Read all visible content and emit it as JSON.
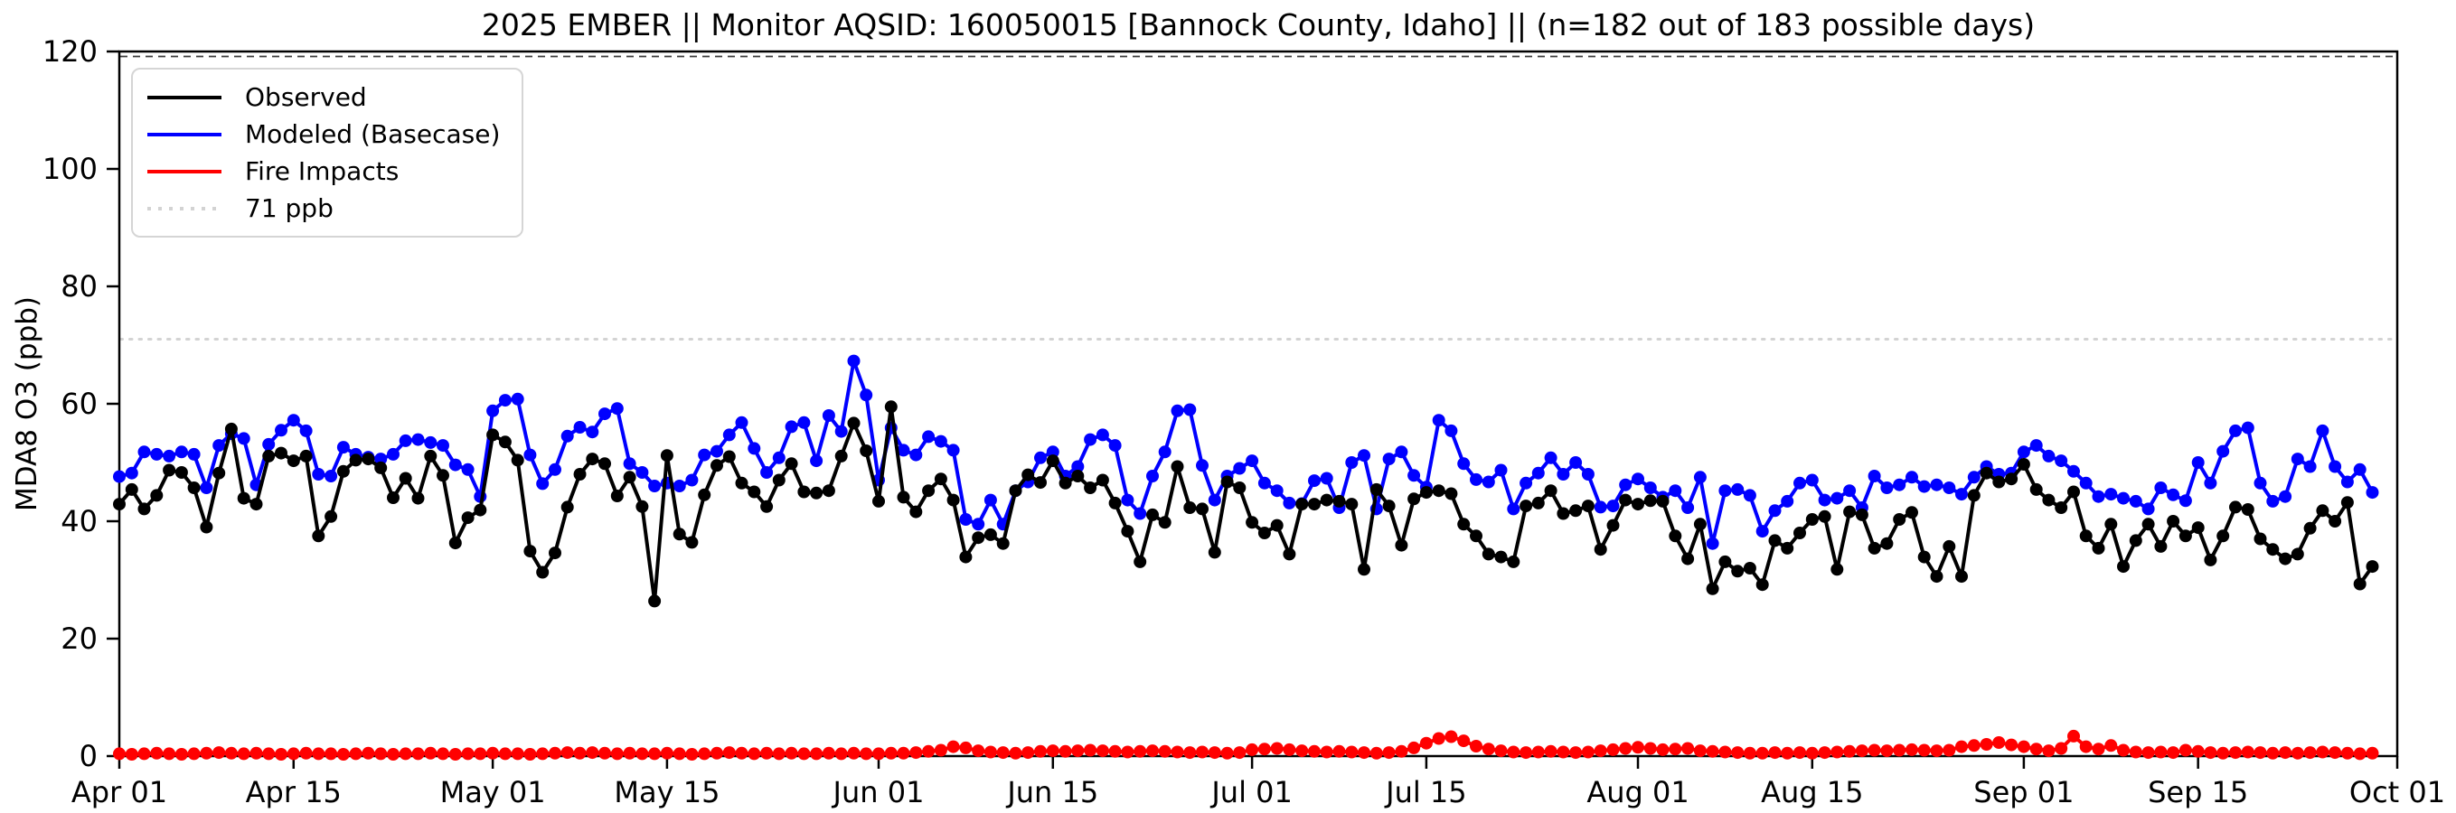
{
  "figure": {
    "title": "2025 EMBER || Monitor AQSID: 160050015 [Bannock County, Idaho] || (n=182 out of 183 possible days)",
    "background": "#ffffff"
  },
  "axes": {
    "ylabel": "MDA8 O3 (ppb)",
    "ylim": [
      0,
      120
    ],
    "yticks": [
      0,
      20,
      40,
      60,
      80,
      100,
      120
    ],
    "x_total_days": 183,
    "xticks": [
      {
        "label": "Apr 01",
        "day": 0
      },
      {
        "label": "Apr 15",
        "day": 14
      },
      {
        "label": "May 01",
        "day": 30
      },
      {
        "label": "May 15",
        "day": 44
      },
      {
        "label": "Jun 01",
        "day": 61
      },
      {
        "label": "Jun 15",
        "day": 75
      },
      {
        "label": "Jul 01",
        "day": 91
      },
      {
        "label": "Jul 15",
        "day": 105
      },
      {
        "label": "Aug 01",
        "day": 122
      },
      {
        "label": "Aug 15",
        "day": 136
      },
      {
        "label": "Sep 01",
        "day": 153
      },
      {
        "label": "Sep 15",
        "day": 167
      },
      {
        "label": "Oct 01",
        "day": 183
      }
    ]
  },
  "legend": {
    "items": [
      {
        "label": "Observed",
        "color": "#000000",
        "style": "solid"
      },
      {
        "label": "Modeled (Basecase)",
        "color": "#0000ff",
        "style": "solid"
      },
      {
        "label": "Fire Impacts",
        "color": "#ff0000",
        "style": "solid"
      },
      {
        "label": "71 ppb",
        "color": "#d3d3d3",
        "style": "dotted"
      }
    ]
  },
  "chart_data": {
    "type": "line",
    "title": "2025 EMBER || Monitor AQSID: 160050015 [Bannock County, Idaho] || (n=182 out of 183 possible days)",
    "xlabel": "",
    "ylabel": "MDA8 O3 (ppb)",
    "x_unit": "days since Apr 01 2025 (daily values, Apr 01 - Sep 29)",
    "x_range_days": [
      0,
      183
    ],
    "ylim": [
      0,
      120
    ],
    "grid": false,
    "legend_position": "upper left",
    "threshold_ppb": 71,
    "threshold_color": "#d3d3d3",
    "series": [
      {
        "name": "Fire Impacts",
        "color": "#ff0000",
        "marker": "circle",
        "values": [
          0.4,
          0.3,
          0.4,
          0.5,
          0.4,
          0.3,
          0.4,
          0.5,
          0.6,
          0.5,
          0.4,
          0.5,
          0.4,
          0.3,
          0.4,
          0.5,
          0.4,
          0.4,
          0.3,
          0.4,
          0.5,
          0.4,
          0.3,
          0.4,
          0.4,
          0.5,
          0.4,
          0.3,
          0.4,
          0.4,
          0.5,
          0.4,
          0.4,
          0.3,
          0.4,
          0.5,
          0.6,
          0.5,
          0.6,
          0.5,
          0.4,
          0.5,
          0.4,
          0.4,
          0.5,
          0.4,
          0.3,
          0.4,
          0.5,
          0.6,
          0.5,
          0.4,
          0.5,
          0.4,
          0.5,
          0.4,
          0.4,
          0.5,
          0.4,
          0.5,
          0.4,
          0.4,
          0.5,
          0.5,
          0.6,
          0.8,
          1.0,
          1.6,
          1.4,
          0.9,
          0.7,
          0.6,
          0.5,
          0.6,
          0.8,
          0.9,
          0.8,
          0.9,
          1.0,
          0.9,
          0.8,
          0.7,
          0.8,
          0.9,
          0.8,
          0.7,
          0.6,
          0.7,
          0.6,
          0.5,
          0.6,
          1.1,
          1.2,
          1.3,
          1.1,
          0.9,
          0.8,
          0.7,
          0.8,
          0.7,
          0.6,
          0.5,
          0.6,
          0.8,
          1.4,
          2.2,
          3.0,
          3.3,
          2.6,
          1.7,
          1.2,
          0.9,
          0.7,
          0.6,
          0.7,
          0.8,
          0.7,
          0.6,
          0.7,
          0.9,
          1.1,
          1.3,
          1.5,
          1.3,
          1.1,
          1.2,
          1.3,
          0.9,
          0.8,
          0.7,
          0.6,
          0.5,
          0.5,
          0.6,
          0.5,
          0.6,
          0.5,
          0.6,
          0.7,
          0.8,
          0.9,
          1.0,
          0.9,
          1.0,
          1.1,
          1.0,
          0.9,
          1.0,
          1.6,
          1.8,
          2.0,
          2.3,
          1.9,
          1.6,
          1.2,
          0.9,
          1.3,
          3.4,
          1.6,
          1.2,
          1.8,
          1.0,
          0.7,
          0.6,
          0.7,
          0.6,
          1.0,
          0.8,
          0.6,
          0.5,
          0.6,
          0.7,
          0.6,
          0.5,
          0.6,
          0.5,
          0.6,
          0.7,
          0.6,
          0.5,
          0.4,
          0.5
        ]
      },
      {
        "name": "Modeled (Basecase)",
        "color": "#0000ff",
        "marker": "circle",
        "values": [
          47.6,
          48.2,
          51.8,
          51.4,
          51.1,
          51.8,
          51.4,
          45.7,
          52.9,
          54.9,
          54.1,
          46.2,
          53.1,
          55.5,
          57.2,
          55.4,
          48.0,
          47.7,
          52.6,
          51.4,
          50.9,
          50.6,
          51.4,
          53.7,
          53.9,
          53.4,
          52.9,
          49.6,
          48.8,
          44.2,
          58.8,
          60.6,
          60.8,
          51.3,
          46.4,
          48.8,
          54.5,
          56.0,
          55.2,
          58.3,
          59.2,
          49.8,
          48.3,
          46.0,
          46.5,
          46.0,
          47.0,
          51.3,
          51.9,
          54.7,
          56.8,
          52.4,
          48.3,
          50.8,
          56.1,
          56.8,
          50.3,
          58.0,
          55.3,
          67.3,
          61.5,
          47.0,
          55.9,
          52.1,
          51.3,
          54.4,
          53.6,
          52.1,
          40.3,
          39.5,
          43.6,
          39.5,
          45.2,
          46.7,
          50.8,
          51.8,
          47.7,
          49.3,
          53.9,
          54.7,
          52.9,
          43.6,
          41.3,
          47.7,
          51.8,
          58.8,
          59.0,
          49.5,
          43.6,
          47.7,
          49.0,
          50.3,
          46.5,
          45.2,
          43.1,
          43.0,
          46.9,
          47.3,
          42.3,
          50.0,
          51.2,
          42.1,
          50.6,
          51.8,
          47.8,
          45.8,
          57.2,
          55.4,
          49.8,
          47.1,
          46.7,
          48.7,
          42.1,
          46.5,
          48.2,
          50.8,
          48.0,
          50.0,
          48.0,
          42.4,
          42.6,
          46.2,
          47.2,
          45.7,
          44.1,
          45.2,
          42.3,
          47.5,
          36.2,
          45.2,
          45.4,
          44.4,
          38.3,
          41.8,
          43.4,
          46.5,
          47.0,
          43.6,
          43.9,
          45.2,
          42.3,
          47.7,
          45.7,
          46.2,
          47.5,
          45.9,
          46.2,
          45.7,
          44.6,
          47.5,
          49.3,
          48.0,
          48.2,
          51.8,
          52.9,
          51.1,
          50.3,
          48.5,
          46.5,
          44.2,
          44.6,
          43.9,
          43.4,
          42.1,
          45.7,
          44.5,
          43.5,
          50.0,
          46.5,
          51.9,
          55.4,
          55.9,
          46.5,
          43.4,
          44.2,
          50.6,
          49.3,
          55.4,
          49.3,
          46.7,
          48.8,
          44.9
        ]
      },
      {
        "name": "Observed",
        "color": "#000000",
        "marker": "circle",
        "values": [
          42.9,
          45.4,
          42.1,
          44.4,
          48.7,
          48.3,
          45.7,
          39.0,
          48.2,
          55.7,
          43.9,
          42.9,
          51.1,
          51.6,
          50.3,
          51.1,
          37.5,
          40.8,
          48.5,
          50.4,
          50.6,
          49.1,
          44.0,
          47.3,
          43.9,
          51.1,
          47.8,
          36.3,
          40.6,
          41.9,
          54.7,
          53.5,
          50.4,
          34.9,
          31.3,
          34.6,
          42.4,
          48.0,
          50.6,
          49.8,
          44.3,
          47.5,
          42.5,
          26.4,
          51.2,
          37.8,
          36.4,
          44.5,
          49.5,
          51.0,
          46.5,
          45.0,
          42.5,
          47.0,
          49.8,
          45.0,
          44.8,
          45.2,
          51.1,
          56.7,
          52.0,
          43.4,
          59.5,
          44.1,
          41.6,
          45.2,
          47.2,
          43.6,
          33.9,
          37.2,
          37.7,
          36.2,
          45.2,
          47.9,
          46.6,
          50.3,
          46.5,
          47.7,
          45.7,
          47.0,
          43.1,
          38.3,
          33.1,
          41.1,
          39.8,
          49.3,
          42.3,
          42.1,
          34.7,
          46.7,
          45.7,
          39.8,
          38.0,
          39.3,
          34.4,
          42.9,
          42.9,
          43.6,
          43.4,
          42.9,
          31.8,
          45.4,
          42.6,
          35.9,
          43.8,
          44.9,
          45.2,
          44.7,
          39.5,
          37.5,
          34.4,
          33.9,
          33.1,
          42.6,
          43.1,
          45.2,
          41.3,
          41.8,
          42.6,
          35.2,
          39.3,
          43.6,
          42.9,
          43.5,
          43.4,
          37.5,
          33.6,
          39.5,
          28.5,
          33.1,
          31.5,
          32.0,
          29.2,
          36.7,
          35.4,
          38.0,
          40.3,
          40.8,
          31.8,
          41.6,
          41.1,
          35.4,
          36.2,
          40.3,
          41.5,
          33.9,
          30.6,
          35.7,
          30.6,
          44.4,
          48.2,
          46.7,
          47.2,
          49.7,
          45.4,
          43.6,
          42.3,
          45.0,
          37.5,
          35.4,
          39.5,
          32.3,
          36.7,
          39.5,
          35.7,
          40.0,
          37.5,
          38.9,
          33.4,
          37.5,
          42.4,
          42.0,
          37.0,
          35.2,
          33.6,
          34.4,
          38.8,
          41.8,
          40.0,
          43.2,
          29.3,
          32.3
        ]
      }
    ]
  }
}
